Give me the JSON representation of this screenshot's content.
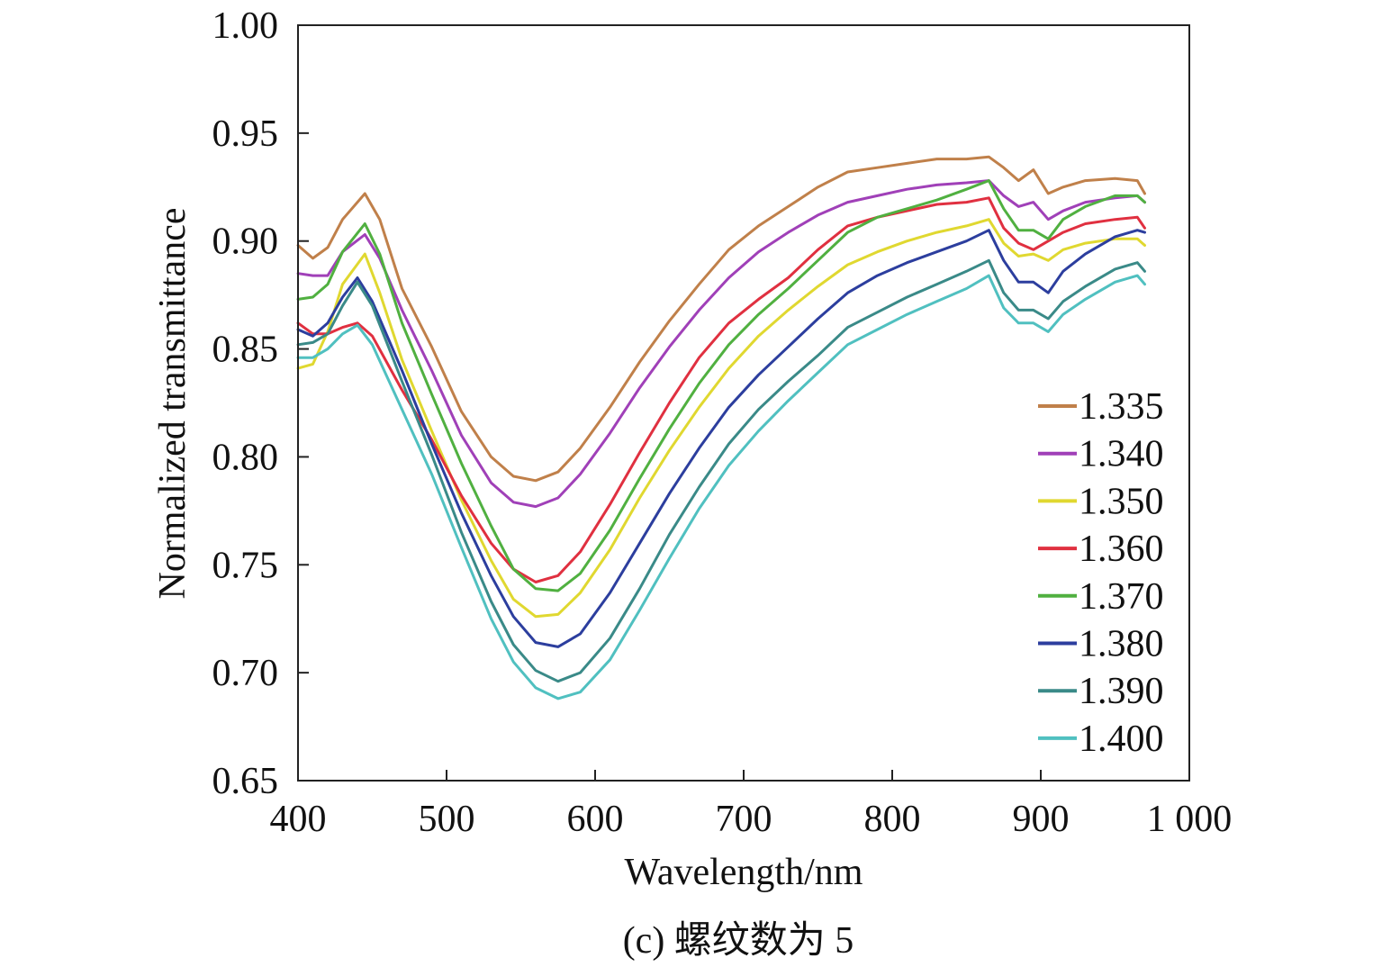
{
  "caption": "(c) 螺纹数为 5",
  "chart_data": {
    "type": "line",
    "title": "",
    "xlabel": "Wavelength/nm",
    "ylabel": "Normalized transmittance",
    "xlim": [
      400,
      1000
    ],
    "ylim": [
      0.65,
      1.0
    ],
    "x_ticks": [
      400,
      500,
      600,
      700,
      800,
      900,
      1000
    ],
    "x_tick_labels": [
      "400",
      "500",
      "600",
      "700",
      "800",
      "900",
      "1 000"
    ],
    "y_ticks": [
      0.65,
      0.7,
      0.75,
      0.8,
      0.85,
      0.9,
      0.95,
      1.0
    ],
    "y_tick_labels": [
      "0.65",
      "0.70",
      "0.75",
      "0.80",
      "0.85",
      "0.90",
      "0.95",
      "1.00"
    ],
    "grid": false,
    "legend_position": "bottom-right",
    "series": [
      {
        "name": "1.335",
        "color": "#c0804a",
        "points": [
          [
            400,
            0.898
          ],
          [
            410,
            0.892
          ],
          [
            420,
            0.897
          ],
          [
            430,
            0.91
          ],
          [
            445,
            0.922
          ],
          [
            455,
            0.91
          ],
          [
            470,
            0.878
          ],
          [
            490,
            0.851
          ],
          [
            510,
            0.821
          ],
          [
            530,
            0.8
          ],
          [
            545,
            0.791
          ],
          [
            560,
            0.789
          ],
          [
            575,
            0.793
          ],
          [
            590,
            0.804
          ],
          [
            610,
            0.823
          ],
          [
            630,
            0.844
          ],
          [
            650,
            0.863
          ],
          [
            670,
            0.88
          ],
          [
            690,
            0.896
          ],
          [
            710,
            0.907
          ],
          [
            730,
            0.916
          ],
          [
            750,
            0.925
          ],
          [
            770,
            0.932
          ],
          [
            790,
            0.934
          ],
          [
            810,
            0.936
          ],
          [
            830,
            0.938
          ],
          [
            850,
            0.938
          ],
          [
            865,
            0.939
          ],
          [
            875,
            0.934
          ],
          [
            885,
            0.928
          ],
          [
            895,
            0.933
          ],
          [
            905,
            0.922
          ],
          [
            915,
            0.925
          ],
          [
            930,
            0.928
          ],
          [
            950,
            0.929
          ],
          [
            965,
            0.928
          ],
          [
            970,
            0.922
          ]
        ]
      },
      {
        "name": "1.340",
        "color": "#a040b8",
        "points": [
          [
            400,
            0.885
          ],
          [
            410,
            0.884
          ],
          [
            420,
            0.884
          ],
          [
            430,
            0.895
          ],
          [
            445,
            0.903
          ],
          [
            455,
            0.892
          ],
          [
            470,
            0.868
          ],
          [
            490,
            0.84
          ],
          [
            510,
            0.81
          ],
          [
            530,
            0.788
          ],
          [
            545,
            0.779
          ],
          [
            560,
            0.777
          ],
          [
            575,
            0.781
          ],
          [
            590,
            0.792
          ],
          [
            610,
            0.811
          ],
          [
            630,
            0.832
          ],
          [
            650,
            0.851
          ],
          [
            670,
            0.868
          ],
          [
            690,
            0.883
          ],
          [
            710,
            0.895
          ],
          [
            730,
            0.904
          ],
          [
            750,
            0.912
          ],
          [
            770,
            0.918
          ],
          [
            790,
            0.921
          ],
          [
            810,
            0.924
          ],
          [
            830,
            0.926
          ],
          [
            850,
            0.927
          ],
          [
            865,
            0.928
          ],
          [
            875,
            0.921
          ],
          [
            885,
            0.916
          ],
          [
            895,
            0.918
          ],
          [
            905,
            0.91
          ],
          [
            915,
            0.914
          ],
          [
            930,
            0.918
          ],
          [
            950,
            0.92
          ],
          [
            965,
            0.921
          ],
          [
            970,
            0.918
          ]
        ]
      },
      {
        "name": "1.350",
        "color": "#e0d830",
        "points": [
          [
            400,
            0.841
          ],
          [
            410,
            0.843
          ],
          [
            420,
            0.858
          ],
          [
            430,
            0.88
          ],
          [
            445,
            0.894
          ],
          [
            455,
            0.876
          ],
          [
            470,
            0.845
          ],
          [
            490,
            0.812
          ],
          [
            510,
            0.78
          ],
          [
            530,
            0.752
          ],
          [
            545,
            0.734
          ],
          [
            560,
            0.726
          ],
          [
            575,
            0.727
          ],
          [
            590,
            0.737
          ],
          [
            610,
            0.757
          ],
          [
            630,
            0.781
          ],
          [
            650,
            0.803
          ],
          [
            670,
            0.823
          ],
          [
            690,
            0.841
          ],
          [
            710,
            0.856
          ],
          [
            730,
            0.868
          ],
          [
            750,
            0.879
          ],
          [
            770,
            0.889
          ],
          [
            790,
            0.895
          ],
          [
            810,
            0.9
          ],
          [
            830,
            0.904
          ],
          [
            850,
            0.907
          ],
          [
            865,
            0.91
          ],
          [
            875,
            0.899
          ],
          [
            885,
            0.893
          ],
          [
            895,
            0.894
          ],
          [
            905,
            0.891
          ],
          [
            915,
            0.896
          ],
          [
            930,
            0.899
          ],
          [
            950,
            0.901
          ],
          [
            965,
            0.901
          ],
          [
            970,
            0.898
          ]
        ]
      },
      {
        "name": "1.360",
        "color": "#e03040",
        "points": [
          [
            400,
            0.862
          ],
          [
            410,
            0.857
          ],
          [
            420,
            0.857
          ],
          [
            430,
            0.86
          ],
          [
            440,
            0.862
          ],
          [
            450,
            0.856
          ],
          [
            470,
            0.831
          ],
          [
            490,
            0.808
          ],
          [
            510,
            0.782
          ],
          [
            530,
            0.76
          ],
          [
            545,
            0.748
          ],
          [
            560,
            0.742
          ],
          [
            575,
            0.745
          ],
          [
            590,
            0.756
          ],
          [
            610,
            0.778
          ],
          [
            630,
            0.802
          ],
          [
            650,
            0.825
          ],
          [
            670,
            0.846
          ],
          [
            690,
            0.862
          ],
          [
            710,
            0.873
          ],
          [
            730,
            0.883
          ],
          [
            750,
            0.896
          ],
          [
            770,
            0.907
          ],
          [
            790,
            0.911
          ],
          [
            810,
            0.914
          ],
          [
            830,
            0.917
          ],
          [
            850,
            0.918
          ],
          [
            865,
            0.92
          ],
          [
            875,
            0.906
          ],
          [
            885,
            0.899
          ],
          [
            895,
            0.896
          ],
          [
            905,
            0.9
          ],
          [
            915,
            0.904
          ],
          [
            930,
            0.908
          ],
          [
            950,
            0.91
          ],
          [
            965,
            0.911
          ],
          [
            970,
            0.906
          ]
        ]
      },
      {
        "name": "1.370",
        "color": "#50b040",
        "points": [
          [
            400,
            0.873
          ],
          [
            410,
            0.874
          ],
          [
            420,
            0.88
          ],
          [
            430,
            0.895
          ],
          [
            445,
            0.908
          ],
          [
            455,
            0.894
          ],
          [
            470,
            0.862
          ],
          [
            490,
            0.829
          ],
          [
            510,
            0.797
          ],
          [
            530,
            0.768
          ],
          [
            545,
            0.748
          ],
          [
            560,
            0.739
          ],
          [
            575,
            0.738
          ],
          [
            590,
            0.746
          ],
          [
            610,
            0.766
          ],
          [
            630,
            0.79
          ],
          [
            650,
            0.813
          ],
          [
            670,
            0.834
          ],
          [
            690,
            0.852
          ],
          [
            710,
            0.866
          ],
          [
            730,
            0.878
          ],
          [
            750,
            0.891
          ],
          [
            770,
            0.904
          ],
          [
            790,
            0.911
          ],
          [
            810,
            0.915
          ],
          [
            830,
            0.919
          ],
          [
            850,
            0.924
          ],
          [
            865,
            0.928
          ],
          [
            875,
            0.915
          ],
          [
            885,
            0.905
          ],
          [
            895,
            0.905
          ],
          [
            905,
            0.901
          ],
          [
            915,
            0.91
          ],
          [
            930,
            0.916
          ],
          [
            950,
            0.921
          ],
          [
            965,
            0.921
          ],
          [
            970,
            0.918
          ]
        ]
      },
      {
        "name": "1.380",
        "color": "#2c3e9e",
        "points": [
          [
            400,
            0.859
          ],
          [
            410,
            0.856
          ],
          [
            420,
            0.862
          ],
          [
            430,
            0.874
          ],
          [
            440,
            0.883
          ],
          [
            450,
            0.872
          ],
          [
            470,
            0.84
          ],
          [
            490,
            0.806
          ],
          [
            510,
            0.774
          ],
          [
            530,
            0.745
          ],
          [
            545,
            0.726
          ],
          [
            560,
            0.714
          ],
          [
            575,
            0.712
          ],
          [
            590,
            0.718
          ],
          [
            610,
            0.737
          ],
          [
            630,
            0.76
          ],
          [
            650,
            0.783
          ],
          [
            670,
            0.804
          ],
          [
            690,
            0.823
          ],
          [
            710,
            0.838
          ],
          [
            730,
            0.851
          ],
          [
            750,
            0.864
          ],
          [
            770,
            0.876
          ],
          [
            790,
            0.884
          ],
          [
            810,
            0.89
          ],
          [
            830,
            0.895
          ],
          [
            850,
            0.9
          ],
          [
            865,
            0.905
          ],
          [
            875,
            0.891
          ],
          [
            885,
            0.881
          ],
          [
            895,
            0.881
          ],
          [
            905,
            0.876
          ],
          [
            915,
            0.886
          ],
          [
            930,
            0.894
          ],
          [
            950,
            0.902
          ],
          [
            965,
            0.905
          ],
          [
            970,
            0.904
          ]
        ]
      },
      {
        "name": "1.390",
        "color": "#3a8a88",
        "points": [
          [
            400,
            0.852
          ],
          [
            410,
            0.853
          ],
          [
            420,
            0.857
          ],
          [
            430,
            0.87
          ],
          [
            440,
            0.881
          ],
          [
            450,
            0.87
          ],
          [
            470,
            0.835
          ],
          [
            490,
            0.801
          ],
          [
            510,
            0.765
          ],
          [
            530,
            0.733
          ],
          [
            545,
            0.713
          ],
          [
            560,
            0.701
          ],
          [
            575,
            0.696
          ],
          [
            590,
            0.7
          ],
          [
            610,
            0.716
          ],
          [
            630,
            0.739
          ],
          [
            650,
            0.764
          ],
          [
            670,
            0.786
          ],
          [
            690,
            0.806
          ],
          [
            710,
            0.822
          ],
          [
            730,
            0.835
          ],
          [
            750,
            0.847
          ],
          [
            770,
            0.86
          ],
          [
            790,
            0.867
          ],
          [
            810,
            0.874
          ],
          [
            830,
            0.88
          ],
          [
            850,
            0.886
          ],
          [
            865,
            0.891
          ],
          [
            875,
            0.876
          ],
          [
            885,
            0.868
          ],
          [
            895,
            0.868
          ],
          [
            905,
            0.864
          ],
          [
            915,
            0.872
          ],
          [
            930,
            0.879
          ],
          [
            950,
            0.887
          ],
          [
            965,
            0.89
          ],
          [
            970,
            0.886
          ]
        ]
      },
      {
        "name": "1.400",
        "color": "#50c0c0",
        "points": [
          [
            400,
            0.846
          ],
          [
            410,
            0.846
          ],
          [
            420,
            0.85
          ],
          [
            430,
            0.857
          ],
          [
            440,
            0.861
          ],
          [
            450,
            0.852
          ],
          [
            470,
            0.822
          ],
          [
            490,
            0.792
          ],
          [
            510,
            0.758
          ],
          [
            530,
            0.725
          ],
          [
            545,
            0.705
          ],
          [
            560,
            0.693
          ],
          [
            575,
            0.688
          ],
          [
            590,
            0.691
          ],
          [
            610,
            0.706
          ],
          [
            630,
            0.729
          ],
          [
            650,
            0.753
          ],
          [
            670,
            0.776
          ],
          [
            690,
            0.796
          ],
          [
            710,
            0.812
          ],
          [
            730,
            0.826
          ],
          [
            750,
            0.839
          ],
          [
            770,
            0.852
          ],
          [
            790,
            0.859
          ],
          [
            810,
            0.866
          ],
          [
            830,
            0.872
          ],
          [
            850,
            0.878
          ],
          [
            865,
            0.884
          ],
          [
            875,
            0.869
          ],
          [
            885,
            0.862
          ],
          [
            895,
            0.862
          ],
          [
            905,
            0.858
          ],
          [
            915,
            0.866
          ],
          [
            930,
            0.873
          ],
          [
            950,
            0.881
          ],
          [
            965,
            0.884
          ],
          [
            970,
            0.88
          ]
        ]
      }
    ]
  }
}
